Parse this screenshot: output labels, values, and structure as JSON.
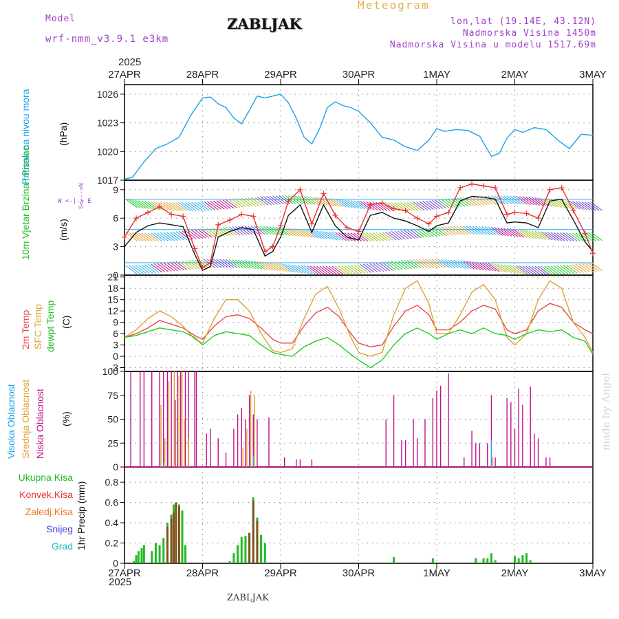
{
  "header": {
    "model_label": "Model",
    "model_name": "wrf-nmm_v3.9.1 e3km",
    "meteogram": "Meteogram",
    "station": "ZABLJAK",
    "coords": "lon,lat (19.14E, 43.12N)",
    "elevation": "Nadmorska Visina 1450m",
    "model_elevation": "Nadmorska Visina u modelu 1517.69m",
    "year_top": "2025",
    "year_bottom": "2025",
    "footer_station": "ZABLJAK",
    "credit": "made by Angel"
  },
  "colors": {
    "pressure": "#1aa3e8",
    "wind_barb_green": "#22cc22",
    "wind_obs": "#e83030",
    "temp2m": "#e84a4a",
    "sfc": "#e0a030",
    "dewpt": "#22cc22",
    "high_cloud": "#22aaee",
    "mid_cloud": "#e0a030",
    "low_cloud": "#c0108a",
    "total_precip": "#22bb22",
    "conv_precip": "#e83030",
    "frozen": "#ee7722",
    "snow": "#4444dd",
    "graupel": "#22bbbb"
  },
  "chart_data": [
    {
      "type": "line",
      "panel": "pressure",
      "title": "Pritisak na nivou mora",
      "ylabel": "(hPa)",
      "ylim": [
        1017,
        1027
      ],
      "yticks": [
        1017,
        1020,
        1023,
        1026
      ],
      "x_dates": [
        "27APR",
        "28APR",
        "29APR",
        "30APR",
        "1MAY",
        "2MAY",
        "3MAY"
      ],
      "x": [
        0,
        0.1,
        0.25,
        0.4,
        0.55,
        0.7,
        0.85,
        1.0,
        1.1,
        1.2,
        1.3,
        1.4,
        1.5,
        1.6,
        1.7,
        1.8,
        1.9,
        2.0,
        2.1,
        2.2,
        2.3,
        2.4,
        2.5,
        2.6,
        2.7,
        2.8,
        2.9,
        3.0,
        3.15,
        3.3,
        3.45,
        3.6,
        3.75,
        3.9,
        4.0,
        4.1,
        4.25,
        4.4,
        4.55,
        4.7,
        4.8,
        4.9,
        5.0,
        5.1,
        5.25,
        5.4,
        5.55,
        5.7,
        5.85,
        6.0
      ],
      "values": [
        1017.1,
        1017.3,
        1018.9,
        1020.3,
        1020.8,
        1021.5,
        1023.8,
        1025.6,
        1025.7,
        1025.0,
        1024.6,
        1023.5,
        1022.9,
        1024.3,
        1025.8,
        1025.6,
        1025.8,
        1026.0,
        1025.1,
        1023.5,
        1021.5,
        1020.8,
        1022.4,
        1024.6,
        1025.2,
        1024.8,
        1024.6,
        1024.2,
        1023.0,
        1021.5,
        1021.2,
        1020.5,
        1020.1,
        1021.2,
        1022.4,
        1022.1,
        1022.3,
        1022.2,
        1021.6,
        1019.5,
        1019.8,
        1021.4,
        1022.3,
        1022.0,
        1022.5,
        1022.3,
        1021.2,
        1020.3,
        1021.8,
        1021.7
      ]
    },
    {
      "type": "line",
      "panel": "wind",
      "title": "10m Vjetar Brzina i Pravac",
      "ylabel": "(m/s)",
      "compass": "W <-|-> E",
      "compass_ns": "S<--->N",
      "ylim": [
        0,
        10
      ],
      "yticks": [
        0,
        3,
        6,
        9
      ],
      "series": [
        {
          "name": "wind speed",
          "color": "#111111",
          "x": [
            0,
            0.15,
            0.3,
            0.45,
            0.6,
            0.75,
            0.9,
            1.0,
            1.1,
            1.2,
            1.35,
            1.5,
            1.65,
            1.8,
            1.9,
            2.0,
            2.1,
            2.25,
            2.4,
            2.55,
            2.7,
            2.85,
            3.0,
            3.15,
            3.3,
            3.45,
            3.6,
            3.75,
            3.9,
            4.0,
            4.15,
            4.3,
            4.45,
            4.6,
            4.75,
            4.9,
            5.0,
            5.15,
            5.3,
            5.45,
            5.6,
            5.75,
            5.9,
            6.0
          ],
          "values": [
            3.0,
            4.5,
            5.2,
            5.5,
            5.3,
            5.1,
            2.2,
            0.5,
            0.9,
            4.0,
            4.6,
            5.0,
            4.8,
            2.0,
            2.5,
            4.0,
            6.3,
            7.4,
            4.5,
            7.4,
            5.2,
            4.0,
            3.7,
            6.3,
            6.6,
            6.0,
            5.7,
            5.2,
            4.6,
            5.2,
            5.5,
            7.8,
            8.3,
            8.2,
            8.0,
            5.5,
            5.6,
            5.5,
            5.0,
            7.8,
            8.0,
            5.8,
            3.5,
            2.5
          ]
        },
        {
          "name": "wind gust",
          "color": "#e83030",
          "x": [
            0,
            0.15,
            0.3,
            0.45,
            0.6,
            0.75,
            0.9,
            1.0,
            1.1,
            1.2,
            1.35,
            1.5,
            1.65,
            1.8,
            1.9,
            2.0,
            2.1,
            2.25,
            2.4,
            2.55,
            2.7,
            2.85,
            3.0,
            3.15,
            3.3,
            3.45,
            3.6,
            3.75,
            3.9,
            4.0,
            4.15,
            4.3,
            4.45,
            4.6,
            4.75,
            4.9,
            5.0,
            5.15,
            5.3,
            5.45,
            5.6,
            5.75,
            5.9,
            6.0
          ],
          "values": [
            4.0,
            6.0,
            6.6,
            7.2,
            6.4,
            6.2,
            2.8,
            0.8,
            1.3,
            5.3,
            5.8,
            6.4,
            6.2,
            2.5,
            3.0,
            5.2,
            7.8,
            9.0,
            5.4,
            8.6,
            6.3,
            5.0,
            4.6,
            7.4,
            7.6,
            7.0,
            6.8,
            6.0,
            5.4,
            6.2,
            6.6,
            9.2,
            9.6,
            9.4,
            9.2,
            6.4,
            6.6,
            6.5,
            6.0,
            9.0,
            9.2,
            6.8,
            4.4,
            2.3
          ]
        }
      ]
    },
    {
      "type": "line",
      "panel": "temperature",
      "title": [
        "2m Temp",
        "SFC Temp",
        "dewpt Temp"
      ],
      "ylabel": "(C)",
      "ylim": [
        -4,
        21.5
      ],
      "yticks": [
        -3,
        0,
        3,
        6,
        9,
        12,
        15,
        18,
        21
      ],
      "series": [
        {
          "name": "2m Temp",
          "x": [
            0,
            0.15,
            0.3,
            0.45,
            0.6,
            0.75,
            0.9,
            1.0,
            1.15,
            1.3,
            1.45,
            1.6,
            1.75,
            1.9,
            2.0,
            2.15,
            2.3,
            2.45,
            2.6,
            2.75,
            2.9,
            3.0,
            3.15,
            3.3,
            3.45,
            3.6,
            3.75,
            3.9,
            4.0,
            4.15,
            4.3,
            4.45,
            4.6,
            4.75,
            4.9,
            5.0,
            5.15,
            5.3,
            5.45,
            5.6,
            5.75,
            5.9,
            6.0
          ],
          "values": [
            5.0,
            6.0,
            7.5,
            9.5,
            8.5,
            7.5,
            5.5,
            4.5,
            8.0,
            10.5,
            11.0,
            10.0,
            7.5,
            4.5,
            3.5,
            3.5,
            8.0,
            11.5,
            13.0,
            10.5,
            6.0,
            3.5,
            2.5,
            3.0,
            8.0,
            12.0,
            13.5,
            11.0,
            7.0,
            7.0,
            9.0,
            12.0,
            13.5,
            12.5,
            7.0,
            6.0,
            7.0,
            12.0,
            14.0,
            13.0,
            9.0,
            7.0,
            6.0
          ]
        },
        {
          "name": "SFC Temp",
          "x": [
            0,
            0.15,
            0.3,
            0.45,
            0.6,
            0.75,
            0.9,
            1.0,
            1.15,
            1.3,
            1.45,
            1.6,
            1.75,
            1.9,
            2.0,
            2.15,
            2.3,
            2.45,
            2.6,
            2.75,
            2.9,
            3.0,
            3.15,
            3.3,
            3.45,
            3.6,
            3.75,
            3.9,
            4.0,
            4.15,
            4.3,
            4.45,
            4.6,
            4.75,
            4.9,
            5.0,
            5.15,
            5.3,
            5.45,
            5.6,
            5.75,
            5.9,
            6.0
          ],
          "values": [
            5.0,
            7.0,
            10.0,
            12.0,
            10.5,
            8.0,
            4.5,
            3.5,
            10.0,
            15.0,
            15.0,
            12.0,
            6.0,
            1.5,
            1.0,
            2.0,
            10.0,
            16.5,
            18.5,
            12.5,
            5.0,
            1.0,
            0.0,
            1.0,
            11.0,
            18.0,
            20.0,
            14.0,
            6.0,
            6.0,
            11.0,
            17.0,
            19.0,
            15.0,
            5.0,
            3.0,
            6.0,
            15.0,
            20.0,
            18.0,
            9.0,
            5.0,
            1.0
          ]
        },
        {
          "name": "dewpt Temp",
          "x": [
            0,
            0.15,
            0.3,
            0.45,
            0.6,
            0.75,
            0.9,
            1.0,
            1.15,
            1.3,
            1.45,
            1.6,
            1.75,
            1.9,
            2.0,
            2.15,
            2.3,
            2.45,
            2.6,
            2.75,
            2.9,
            3.0,
            3.15,
            3.3,
            3.45,
            3.6,
            3.75,
            3.9,
            4.0,
            4.15,
            4.3,
            4.45,
            4.6,
            4.75,
            4.9,
            5.0,
            5.15,
            5.3,
            5.45,
            5.6,
            5.75,
            5.9,
            6.0
          ],
          "values": [
            5.0,
            5.5,
            6.5,
            7.5,
            7.0,
            6.5,
            5.0,
            3.0,
            5.5,
            6.5,
            6.0,
            5.5,
            3.0,
            1.0,
            0.5,
            0.0,
            2.5,
            4.0,
            5.0,
            3.0,
            0.5,
            -1.0,
            -3.0,
            -1.0,
            3.0,
            6.0,
            7.5,
            6.0,
            4.5,
            6.0,
            7.0,
            6.0,
            7.5,
            6.0,
            5.5,
            4.5,
            6.0,
            7.0,
            6.5,
            7.0,
            5.0,
            4.0,
            0.5
          ]
        }
      ]
    },
    {
      "type": "bar",
      "panel": "clouds",
      "title": [
        "Visoka Oblacnost",
        "Srednja Oblacnost",
        "Niska Oblacnost"
      ],
      "ylabel": "(%)",
      "ylim": [
        0,
        100
      ],
      "yticks": [
        0,
        25,
        50,
        75,
        100
      ],
      "series": [
        {
          "name": "Niska Oblacnost",
          "x": [
            0.08,
            0.2,
            0.25,
            0.35,
            0.45,
            0.5,
            0.55,
            0.6,
            0.65,
            0.68,
            0.72,
            0.78,
            0.82,
            0.9,
            0.92,
            1.05,
            1.1,
            1.2,
            1.3,
            1.4,
            1.45,
            1.5,
            1.55,
            1.6,
            1.65,
            1.7,
            1.85,
            2.05,
            2.2,
            2.25,
            2.4,
            3.35,
            3.45,
            3.55,
            3.6,
            3.7,
            3.75,
            3.85,
            3.95,
            4.0,
            4.05,
            4.15,
            4.35,
            4.45,
            4.5,
            4.55,
            4.65,
            4.7,
            4.75,
            4.9,
            4.95,
            5.0,
            5.05,
            5.1,
            5.2,
            5.25,
            5.3,
            5.4,
            5.45,
            5.55,
            5.65,
            5.7
          ],
          "values": [
            100,
            100,
            100,
            100,
            100,
            100,
            100,
            100,
            70,
            100,
            100,
            100,
            100,
            100,
            100,
            35,
            40,
            30,
            15,
            40,
            55,
            62,
            50,
            75,
            55,
            50,
            52,
            10,
            8,
            8,
            8,
            50,
            75,
            28,
            28,
            50,
            30,
            50,
            72,
            80,
            85,
            98,
            10,
            38,
            25,
            25,
            25,
            75,
            10,
            72,
            68,
            40,
            82,
            65,
            84,
            35,
            30,
            10,
            10,
            0,
            0,
            0
          ]
        },
        {
          "name": "Srednja Oblacnost",
          "x": [
            0.45,
            0.5,
            0.55,
            0.62,
            0.68,
            0.72,
            0.75,
            0.8,
            1.5,
            1.55,
            1.6,
            1.65,
            4.7
          ],
          "values": [
            65,
            30,
            90,
            100,
            95,
            100,
            50,
            30,
            20,
            40,
            80,
            75,
            10
          ]
        },
        {
          "name": "Visoka Oblacnost",
          "x": [
            0.5,
            1.65,
            4.7
          ],
          "values": [
            5,
            12,
            28
          ]
        }
      ]
    },
    {
      "type": "bar",
      "panel": "precipitation",
      "title": "1hr Precip",
      "ylabel": "(mm)",
      "legend": [
        "Ukupna Kisa",
        "Konvek.Kisa",
        "Zaledj.Kisa",
        "Snijeg",
        "Grad"
      ],
      "ylim": [
        0,
        0.95
      ],
      "yticks": [
        0,
        0.2,
        0.4,
        0.6,
        0.8
      ],
      "series": [
        {
          "name": "Ukupna Kisa",
          "x": [
            0.12,
            0.15,
            0.18,
            0.22,
            0.25,
            0.35,
            0.4,
            0.45,
            0.5,
            0.55,
            0.6,
            0.63,
            0.66,
            0.7,
            0.74,
            0.78,
            1.35,
            1.4,
            1.45,
            1.5,
            1.55,
            1.6,
            1.65,
            1.7,
            1.75,
            1.8,
            3.45,
            3.95,
            4.5,
            4.6,
            4.65,
            4.7,
            4.75,
            5.0,
            5.05,
            5.1,
            5.15,
            5.2
          ],
          "values": [
            0.02,
            0.08,
            0.12,
            0.15,
            0.18,
            0.12,
            0.2,
            0.18,
            0.25,
            0.4,
            0.48,
            0.58,
            0.6,
            0.58,
            0.52,
            0.18,
            0.02,
            0.1,
            0.18,
            0.26,
            0.27,
            0.3,
            0.65,
            0.45,
            0.28,
            0.2,
            0.06,
            0.05,
            0.05,
            0.05,
            0.05,
            0.1,
            0.03,
            0.07,
            0.05,
            0.08,
            0.1,
            0.03
          ]
        },
        {
          "name": "Konvek.Kisa",
          "x": [
            0.55,
            0.6,
            0.63,
            0.66,
            0.7,
            1.6,
            1.65,
            1.7
          ],
          "values": [
            0.36,
            0.44,
            0.5,
            0.6,
            0.56,
            0.3,
            0.62,
            0.42
          ]
        }
      ]
    }
  ]
}
